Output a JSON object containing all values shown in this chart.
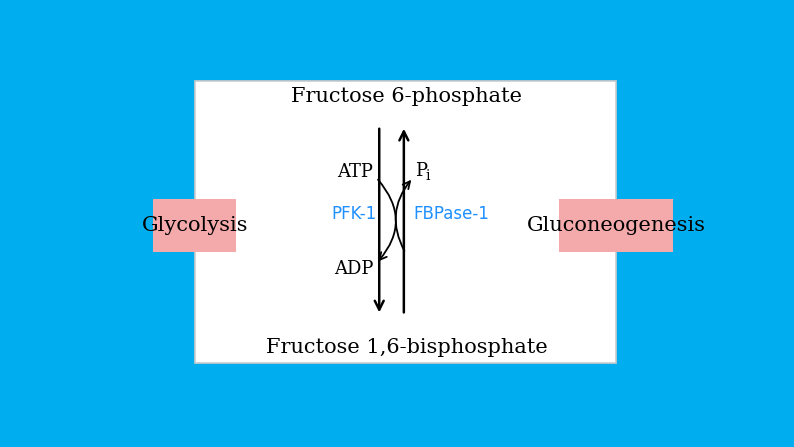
{
  "bg_color": "#00AEEF",
  "panel_bg": "#FFFFFF",
  "panel_edge": "#CCCCCC",
  "top_label": "Fructose 6-phosphate",
  "bottom_label": "Fructose 1,6-bisphosphate",
  "left_box_label": "Glycolysis",
  "right_box_label": "Gluconeogenesis",
  "box_color": "#F4AAAA",
  "pfk_label": "PFK-1",
  "fbpase_label": "FBPase-1",
  "enzyme_color": "#1E90FF",
  "atp_label": "ATP",
  "adp_label": "ADP",
  "pi_label": "P",
  "pi_sub": "i",
  "title_fontsize": 15,
  "label_fontsize": 13,
  "enzyme_fontsize": 12,
  "side_fontsize": 15
}
